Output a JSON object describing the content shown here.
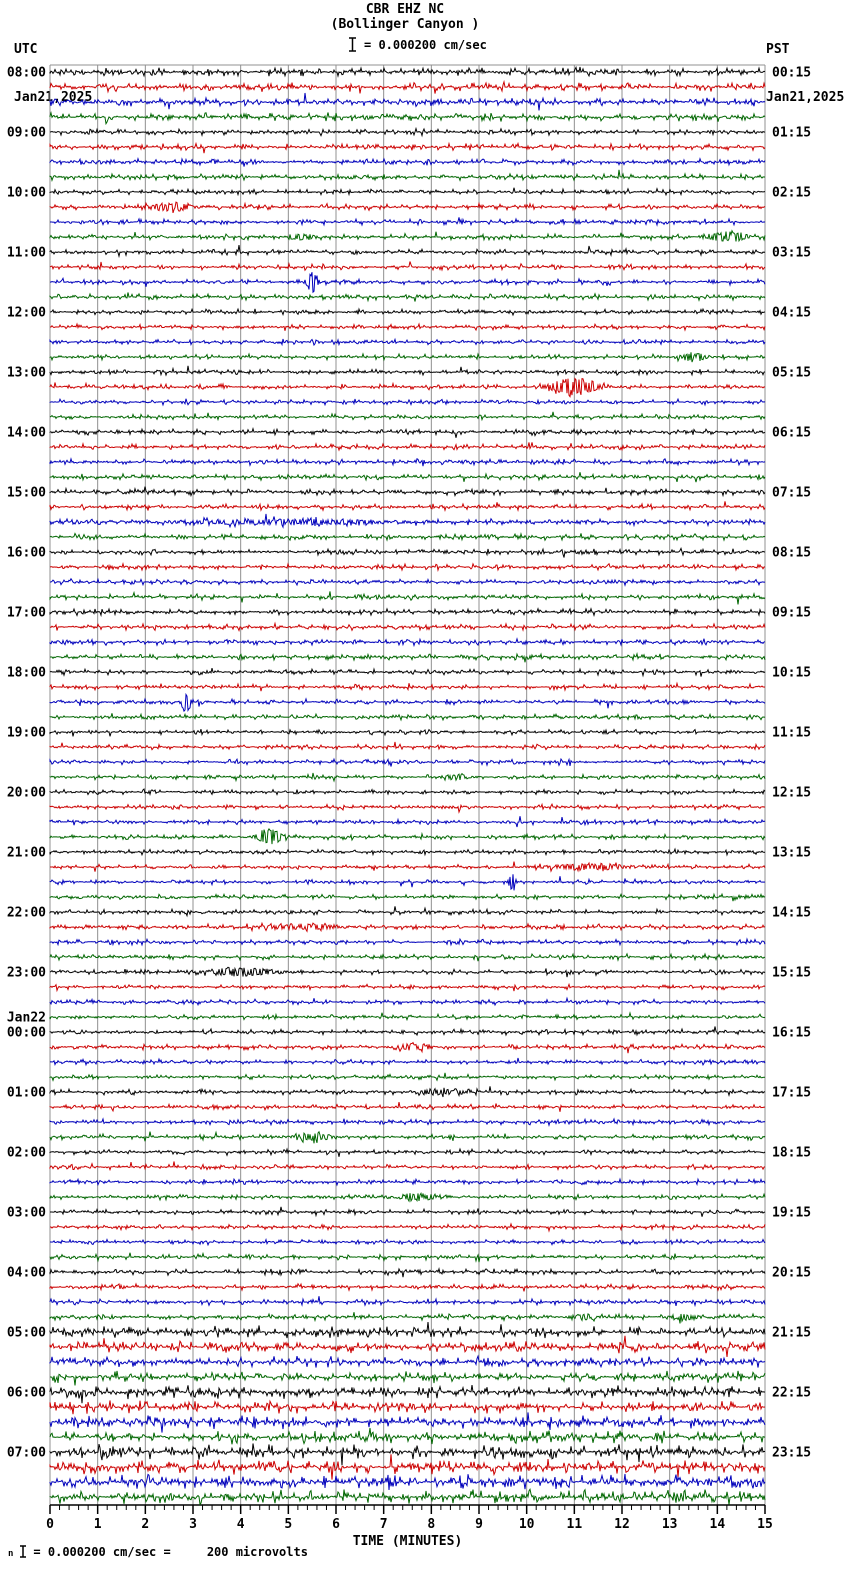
{
  "header": {
    "left_tz": "UTC",
    "left_date": "Jan21,2025",
    "right_tz": "PST",
    "right_date": "Jan21,2025"
  },
  "footer": {
    "prefix": "n",
    "text": "= 0.000200 cm/sec =     200 microvolts"
  },
  "chart_data": {
    "type": "line",
    "kind": "helicorder-seismogram",
    "title": "CBR EHZ NC",
    "subtitle": "(Bollinger Canyon )",
    "scale_label": "= 0.000200 cm/sec",
    "x_axis": {
      "label": "TIME (MINUTES)",
      "min": 0,
      "max": 15,
      "tick_labels": [
        "0",
        "1",
        "2",
        "3",
        "4",
        "5",
        "6",
        "7",
        "8",
        "9",
        "10",
        "11",
        "12",
        "13",
        "14",
        "15"
      ],
      "minor_per_major": 5
    },
    "grid": true,
    "grid_color": "#909090",
    "trace_colors": {
      "black": "#000000",
      "red": "#cc0000",
      "blue": "#0000bb",
      "green": "#006600"
    },
    "trace_order": [
      "black",
      "red",
      "blue",
      "green"
    ],
    "minutes_per_trace": 15,
    "traces_per_hour": 4,
    "date_rollover_label": "Jan22",
    "hours": [
      {
        "utc": "08:00",
        "pst": "00:15",
        "noise": 3.0
      },
      {
        "utc": "09:00",
        "pst": "01:15",
        "noise": 2.2
      },
      {
        "utc": "10:00",
        "pst": "02:15",
        "noise": 2.0
      },
      {
        "utc": "11:00",
        "pst": "03:15",
        "noise": 2.0
      },
      {
        "utc": "12:00",
        "pst": "04:15",
        "noise": 1.9
      },
      {
        "utc": "13:00",
        "pst": "05:15",
        "noise": 1.9
      },
      {
        "utc": "14:00",
        "pst": "06:15",
        "noise": 2.0
      },
      {
        "utc": "15:00",
        "pst": "07:15",
        "noise": 2.1
      },
      {
        "utc": "16:00",
        "pst": "08:15",
        "noise": 2.0
      },
      {
        "utc": "17:00",
        "pst": "09:15",
        "noise": 2.1
      },
      {
        "utc": "18:00",
        "pst": "10:15",
        "noise": 1.9
      },
      {
        "utc": "19:00",
        "pst": "11:15",
        "noise": 1.8
      },
      {
        "utc": "20:00",
        "pst": "12:15",
        "noise": 1.8
      },
      {
        "utc": "21:00",
        "pst": "13:15",
        "noise": 1.8
      },
      {
        "utc": "22:00",
        "pst": "14:15",
        "noise": 1.9
      },
      {
        "utc": "23:00",
        "pst": "15:15",
        "noise": 1.8
      },
      {
        "utc": "00:00",
        "pst": "16:15",
        "noise": 1.8,
        "date_note": "Jan22"
      },
      {
        "utc": "01:00",
        "pst": "17:15",
        "noise": 1.8
      },
      {
        "utc": "02:00",
        "pst": "18:15",
        "noise": 1.8
      },
      {
        "utc": "03:00",
        "pst": "19:15",
        "noise": 1.8
      },
      {
        "utc": "04:00",
        "pst": "20:15",
        "noise": 2.0
      },
      {
        "utc": "05:00",
        "pst": "21:15",
        "noise": 3.8
      },
      {
        "utc": "06:00",
        "pst": "22:15",
        "noise": 4.4
      },
      {
        "utc": "07:00",
        "pst": "23:15",
        "noise": 5.0
      }
    ],
    "events": [
      {
        "utc_hour": "10:00",
        "trace": "red",
        "minute": 2.5,
        "amp": 4,
        "width": 0.5
      },
      {
        "utc_hour": "10:00",
        "trace": "green",
        "minute": 5.3,
        "amp": 3,
        "width": 0.3
      },
      {
        "utc_hour": "10:00",
        "trace": "green",
        "minute": 14.2,
        "amp": 5,
        "width": 0.4
      },
      {
        "utc_hour": "11:00",
        "trace": "blue",
        "minute": 5.5,
        "amp": 10,
        "width": 0.12
      },
      {
        "utc_hour": "12:00",
        "trace": "green",
        "minute": 13.5,
        "amp": 4,
        "width": 0.3
      },
      {
        "utc_hour": "13:00",
        "trace": "red",
        "minute": 11.0,
        "amp": 8,
        "width": 0.5
      },
      {
        "utc_hour": "15:00",
        "trace": "blue",
        "minute": 5.0,
        "amp": 2.5,
        "width": 2.5
      },
      {
        "utc_hour": "18:00",
        "trace": "blue",
        "minute": 2.85,
        "amp": 11,
        "width": 0.1
      },
      {
        "utc_hour": "19:00",
        "trace": "green",
        "minute": 8.6,
        "amp": 2.5,
        "width": 0.3
      },
      {
        "utc_hour": "20:00",
        "trace": "green",
        "minute": 4.6,
        "amp": 8,
        "width": 0.25
      },
      {
        "utc_hour": "21:00",
        "trace": "red",
        "minute": 11.3,
        "amp": 3,
        "width": 1.0
      },
      {
        "utc_hour": "21:00",
        "trace": "blue",
        "minute": 9.7,
        "amp": 9,
        "width": 0.08
      },
      {
        "utc_hour": "22:00",
        "trace": "red",
        "minute": 5.2,
        "amp": 2.5,
        "width": 1.0
      },
      {
        "utc_hour": "23:00",
        "trace": "black",
        "minute": 4.0,
        "amp": 4,
        "width": 0.8
      },
      {
        "utc_hour": "00:00",
        "trace": "red",
        "minute": 7.6,
        "amp": 3,
        "width": 0.4
      },
      {
        "utc_hour": "01:00",
        "trace": "black",
        "minute": 8.2,
        "amp": 3,
        "width": 0.5
      },
      {
        "utc_hour": "01:00",
        "trace": "green",
        "minute": 5.5,
        "amp": 4,
        "width": 0.4
      },
      {
        "utc_hour": "02:00",
        "trace": "green",
        "minute": 7.7,
        "amp": 4,
        "width": 0.4
      },
      {
        "utc_hour": "04:00",
        "trace": "green",
        "minute": 11.2,
        "amp": 3,
        "width": 0.3
      },
      {
        "utc_hour": "04:00",
        "trace": "green",
        "minute": 13.3,
        "amp": 3,
        "width": 0.3
      }
    ]
  }
}
